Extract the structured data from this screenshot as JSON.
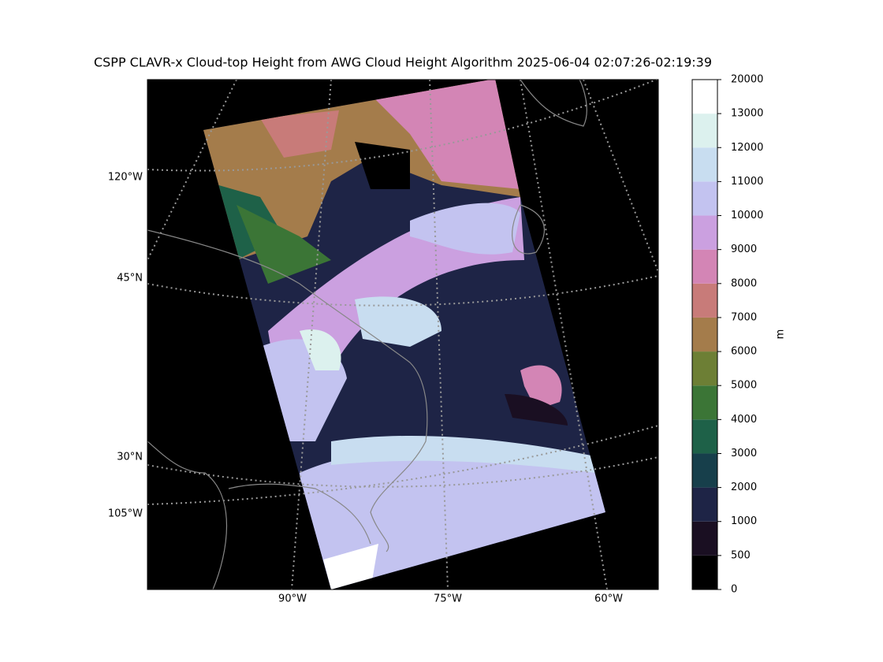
{
  "title": "CSPP CLAVR-x Cloud-top Height from AWG Cloud Height Algorithm 2025-06-04 02:07:26-02:19:39",
  "map": {
    "left_labels": [
      "120°W",
      "45°N",
      "30°N",
      "105°W"
    ],
    "bottom_labels": [
      "90°W",
      "75°W",
      "60°W"
    ]
  },
  "colorbar": {
    "label": "m",
    "ticks": [
      0,
      500,
      1000,
      2000,
      3000,
      4000,
      5000,
      6000,
      7000,
      8000,
      9000,
      10000,
      11000,
      12000,
      13000,
      20000
    ],
    "colors": [
      "#000000",
      "#1a0f22",
      "#1e2446",
      "#173f4b",
      "#1e6148",
      "#3b7536",
      "#6d7f35",
      "#a47c4b",
      "#c87b79",
      "#d385b5",
      "#cba0e0",
      "#c3c3f0",
      "#c8ddf0",
      "#dcf1ee",
      "#ffffff"
    ]
  }
}
